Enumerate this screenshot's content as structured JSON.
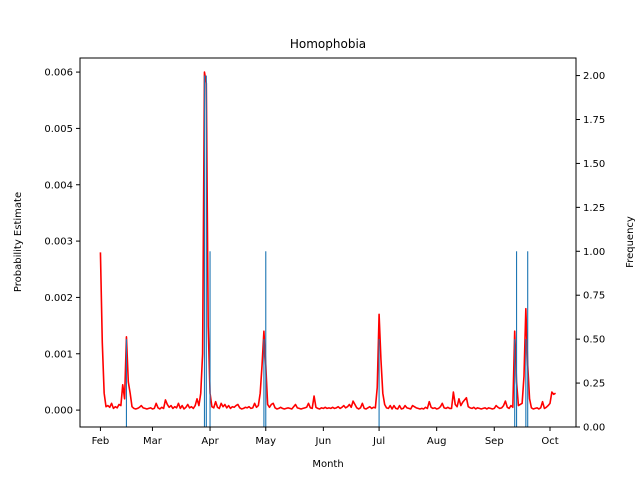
{
  "chart_data": {
    "type": "line",
    "title": "Homophobia",
    "xlabel": "Month",
    "ylabel_left": "Probability Estimate",
    "ylabel_right": "Frequency",
    "x_ticks": [
      "Feb",
      "Mar",
      "Apr",
      "May",
      "Jun",
      "Jul",
      "Aug",
      "Sep",
      "Oct"
    ],
    "x_tick_days": [
      0,
      28,
      59,
      89,
      120,
      150,
      181,
      212,
      242
    ],
    "xlim_days": [
      -11,
      256
    ],
    "ylim_left": [
      -0.0003,
      0.00625
    ],
    "ylim_right": [
      0,
      2.1
    ],
    "y_ticks_left": [
      0.0,
      0.001,
      0.002,
      0.003,
      0.004,
      0.005,
      0.006
    ],
    "y_ticks_left_labels": [
      "0.000",
      "0.001",
      "0.002",
      "0.003",
      "0.004",
      "0.005",
      "0.006"
    ],
    "y_ticks_right": [
      0.0,
      0.25,
      0.5,
      0.75,
      1.0,
      1.25,
      1.5,
      1.75,
      2.0
    ],
    "y_ticks_right_labels": [
      "0.00",
      "0.25",
      "0.50",
      "0.75",
      "1.00",
      "1.25",
      "1.50",
      "1.75",
      "2.00"
    ],
    "series": [
      {
        "axis": "left",
        "color": "#ff0000",
        "points": [
          [
            0,
            0.0028
          ],
          [
            1,
            0.0012
          ],
          [
            2,
            0.0003
          ],
          [
            3,
            6e-05
          ],
          [
            4,
            8e-05
          ],
          [
            5,
            5e-05
          ],
          [
            6,
            0.00012
          ],
          [
            7,
            3e-05
          ],
          [
            8,
            6e-05
          ],
          [
            9,
            4e-05
          ],
          [
            10,
            0.0001
          ],
          [
            11,
            8e-05
          ],
          [
            12,
            0.00045
          ],
          [
            13,
            0.0002
          ],
          [
            14,
            0.0013
          ],
          [
            15,
            0.0005
          ],
          [
            16,
            0.0003
          ],
          [
            17,
            6e-05
          ],
          [
            18,
            3e-05
          ],
          [
            19,
            2e-05
          ],
          [
            20,
            3e-05
          ],
          [
            21,
            5e-05
          ],
          [
            22,
            8e-05
          ],
          [
            23,
            4e-05
          ],
          [
            24,
            3e-05
          ],
          [
            25,
            2e-05
          ],
          [
            26,
            3e-05
          ],
          [
            27,
            4e-05
          ],
          [
            28,
            2e-05
          ],
          [
            29,
            3e-05
          ],
          [
            30,
            0.00012
          ],
          [
            31,
            4e-05
          ],
          [
            32,
            2e-05
          ],
          [
            33,
            5e-05
          ],
          [
            34,
            3e-05
          ],
          [
            35,
            0.00018
          ],
          [
            36,
            0.0001
          ],
          [
            37,
            5e-05
          ],
          [
            38,
            8e-05
          ],
          [
            39,
            3e-05
          ],
          [
            40,
            6e-05
          ],
          [
            41,
            4e-05
          ],
          [
            42,
            0.00012
          ],
          [
            43,
            3e-05
          ],
          [
            44,
            8e-05
          ],
          [
            45,
            2e-05
          ],
          [
            46,
            5e-05
          ],
          [
            47,
            0.0001
          ],
          [
            48,
            4e-05
          ],
          [
            49,
            6e-05
          ],
          [
            50,
            3e-05
          ],
          [
            51,
            8e-05
          ],
          [
            52,
            0.0002
          ],
          [
            53,
            8e-05
          ],
          [
            54,
            0.0003
          ],
          [
            55,
            0.001
          ],
          [
            56,
            0.006
          ],
          [
            57,
            0.0058
          ],
          [
            58,
            0.0015
          ],
          [
            59,
            0.0003
          ],
          [
            60,
            6e-05
          ],
          [
            61,
            4e-05
          ],
          [
            62,
            0.00015
          ],
          [
            63,
            5e-05
          ],
          [
            64,
            3e-05
          ],
          [
            65,
            0.00012
          ],
          [
            66,
            6e-05
          ],
          [
            67,
            0.0001
          ],
          [
            68,
            4e-05
          ],
          [
            69,
            8e-05
          ],
          [
            70,
            3e-05
          ],
          [
            71,
            6e-05
          ],
          [
            72,
            5e-05
          ],
          [
            73,
            8e-05
          ],
          [
            74,
            0.0001
          ],
          [
            75,
            4e-05
          ],
          [
            76,
            2e-05
          ],
          [
            77,
            3e-05
          ],
          [
            78,
            5e-05
          ],
          [
            79,
            4e-05
          ],
          [
            80,
            6e-05
          ],
          [
            81,
            3e-05
          ],
          [
            82,
            4e-05
          ],
          [
            83,
            0.00012
          ],
          [
            84,
            5e-05
          ],
          [
            85,
            8e-05
          ],
          [
            86,
            0.0003
          ],
          [
            87,
            0.0008
          ],
          [
            88,
            0.0014
          ],
          [
            89,
            0.0008
          ],
          [
            90,
            0.0001
          ],
          [
            91,
            5e-05
          ],
          [
            92,
            0.0001
          ],
          [
            93,
            0.00012
          ],
          [
            94,
            4e-05
          ],
          [
            95,
            2e-05
          ],
          [
            96,
            3e-05
          ],
          [
            97,
            5e-05
          ],
          [
            98,
            3e-05
          ],
          [
            99,
            2e-05
          ],
          [
            100,
            3e-05
          ],
          [
            101,
            4e-05
          ],
          [
            102,
            3e-05
          ],
          [
            103,
            2e-05
          ],
          [
            104,
            6e-05
          ],
          [
            105,
            0.0001
          ],
          [
            106,
            4e-05
          ],
          [
            107,
            3e-05
          ],
          [
            108,
            2e-05
          ],
          [
            109,
            3e-05
          ],
          [
            110,
            4e-05
          ],
          [
            111,
            5e-05
          ],
          [
            112,
            0.00012
          ],
          [
            113,
            4e-05
          ],
          [
            114,
            3e-05
          ],
          [
            115,
            0.00025
          ],
          [
            116,
            5e-05
          ],
          [
            117,
            3e-05
          ],
          [
            118,
            2e-05
          ],
          [
            119,
            4e-05
          ],
          [
            120,
            3e-05
          ],
          [
            121,
            5e-05
          ],
          [
            122,
            3e-05
          ],
          [
            123,
            4e-05
          ],
          [
            124,
            3e-05
          ],
          [
            125,
            5e-05
          ],
          [
            126,
            3e-05
          ],
          [
            127,
            4e-05
          ],
          [
            128,
            6e-05
          ],
          [
            129,
            3e-05
          ],
          [
            130,
            5e-05
          ],
          [
            131,
            8e-05
          ],
          [
            132,
            4e-05
          ],
          [
            133,
            6e-05
          ],
          [
            134,
            0.0001
          ],
          [
            135,
            5e-05
          ],
          [
            136,
            0.00016
          ],
          [
            137,
            0.0001
          ],
          [
            138,
            4e-05
          ],
          [
            139,
            2e-05
          ],
          [
            140,
            4e-05
          ],
          [
            141,
            0.00012
          ],
          [
            142,
            3e-05
          ],
          [
            143,
            2e-05
          ],
          [
            144,
            4e-05
          ],
          [
            145,
            6e-05
          ],
          [
            146,
            3e-05
          ],
          [
            147,
            5e-05
          ],
          [
            148,
            4e-05
          ],
          [
            149,
            0.0004
          ],
          [
            150,
            0.0017
          ],
          [
            151,
            0.0009
          ],
          [
            152,
            0.0003
          ],
          [
            153,
            0.0001
          ],
          [
            154,
            4e-05
          ],
          [
            155,
            3e-05
          ],
          [
            156,
            8e-05
          ],
          [
            157,
            2e-05
          ],
          [
            158,
            8e-05
          ],
          [
            159,
            3e-05
          ],
          [
            160,
            2e-05
          ],
          [
            161,
            8e-05
          ],
          [
            162,
            2e-05
          ],
          [
            163,
            3e-05
          ],
          [
            164,
            8e-05
          ],
          [
            165,
            4e-05
          ],
          [
            166,
            3e-05
          ],
          [
            167,
            2e-05
          ],
          [
            168,
            8e-05
          ],
          [
            169,
            6e-05
          ],
          [
            170,
            4e-05
          ],
          [
            171,
            3e-05
          ],
          [
            172,
            2e-05
          ],
          [
            173,
            3e-05
          ],
          [
            174,
            2e-05
          ],
          [
            175,
            5e-05
          ],
          [
            176,
            3e-05
          ],
          [
            177,
            0.00015
          ],
          [
            178,
            5e-05
          ],
          [
            179,
            3e-05
          ],
          [
            180,
            4e-05
          ],
          [
            181,
            2e-05
          ],
          [
            182,
            3e-05
          ],
          [
            183,
            6e-05
          ],
          [
            184,
            0.00012
          ],
          [
            185,
            4e-05
          ],
          [
            186,
            3e-05
          ],
          [
            187,
            5e-05
          ],
          [
            188,
            3e-05
          ],
          [
            189,
            3e-05
          ],
          [
            190,
            0.00032
          ],
          [
            191,
            0.0001
          ],
          [
            192,
            6e-05
          ],
          [
            193,
            0.0002
          ],
          [
            194,
            8e-05
          ],
          [
            195,
            0.00014
          ],
          [
            196,
            0.00018
          ],
          [
            197,
            0.00022
          ],
          [
            198,
            6e-05
          ],
          [
            199,
            4e-05
          ],
          [
            200,
            3e-05
          ],
          [
            201,
            5e-05
          ],
          [
            202,
            2e-05
          ],
          [
            203,
            4e-05
          ],
          [
            204,
            3e-05
          ],
          [
            205,
            2e-05
          ],
          [
            206,
            3e-05
          ],
          [
            207,
            4e-05
          ],
          [
            208,
            2e-05
          ],
          [
            209,
            4e-05
          ],
          [
            210,
            3e-05
          ],
          [
            211,
            2e-05
          ],
          [
            212,
            3e-05
          ],
          [
            213,
            8e-05
          ],
          [
            214,
            5e-05
          ],
          [
            215,
            3e-05
          ],
          [
            216,
            4e-05
          ],
          [
            217,
            8e-05
          ],
          [
            218,
            0.00016
          ],
          [
            219,
            5e-05
          ],
          [
            220,
            3e-05
          ],
          [
            221,
            8e-05
          ],
          [
            222,
            5e-05
          ],
          [
            223,
            0.0014
          ],
          [
            224,
            0.0005
          ],
          [
            225,
            8e-05
          ],
          [
            226,
            0.0001
          ],
          [
            227,
            0.00012
          ],
          [
            228,
            0.0006
          ],
          [
            229,
            0.0018
          ],
          [
            230,
            0.0008
          ],
          [
            231,
            0.0002
          ],
          [
            232,
            4e-05
          ],
          [
            233,
            2e-05
          ],
          [
            234,
            3e-05
          ],
          [
            235,
            4e-05
          ],
          [
            236,
            2e-05
          ],
          [
            237,
            4e-05
          ],
          [
            238,
            0.00015
          ],
          [
            239,
            3e-05
          ],
          [
            240,
            5e-05
          ],
          [
            241,
            8e-05
          ],
          [
            242,
            0.00012
          ],
          [
            243,
            0.00032
          ],
          [
            244,
            0.00028
          ],
          [
            245,
            0.0003
          ]
        ]
      },
      {
        "axis": "right",
        "color": "#1f77b4",
        "bar_width_days": 0.6,
        "points": [
          [
            14,
            0.5
          ],
          [
            56,
            2.0
          ],
          [
            57,
            2.0
          ],
          [
            59,
            1.0
          ],
          [
            88,
            0.5
          ],
          [
            89,
            1.0
          ],
          [
            150,
            0.5
          ],
          [
            223,
            0.5
          ],
          [
            224,
            1.0
          ],
          [
            229,
            0.5
          ],
          [
            230,
            1.0
          ]
        ]
      }
    ]
  }
}
